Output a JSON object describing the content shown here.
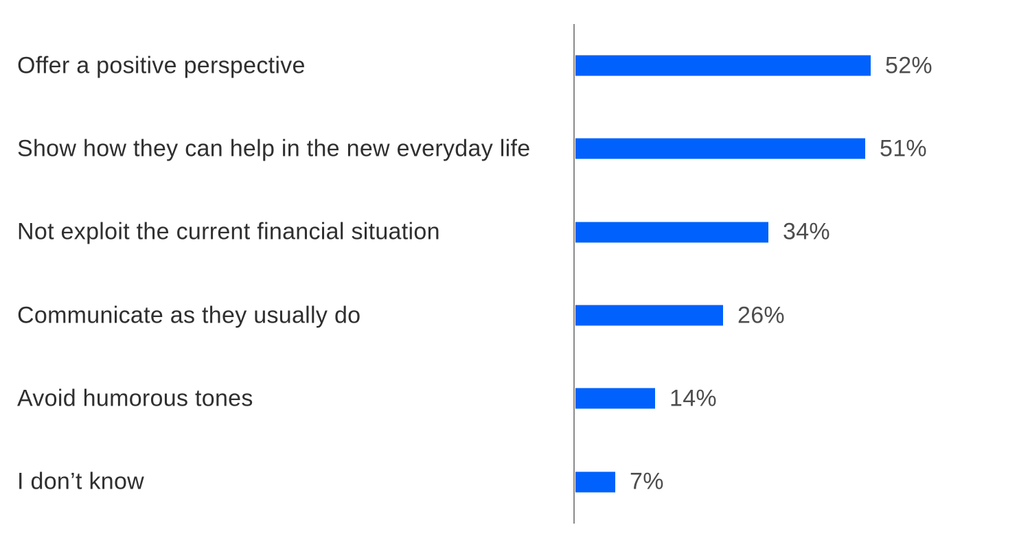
{
  "chart_data": {
    "type": "bar",
    "orientation": "horizontal",
    "title": "",
    "xlabel": "",
    "ylabel": "",
    "categories": [
      "Offer a positive perspective",
      "Show how they can help in the new everyday life",
      "Not exploit the current financial situation",
      "Communicate as they usually do",
      "Avoid humorous tones",
      "I don’t know"
    ],
    "values": [
      52,
      51,
      34,
      26,
      14,
      7
    ],
    "value_suffix": "%",
    "xlim": [
      0,
      60
    ],
    "grid": false,
    "legend": false,
    "data_labels": "outside-end",
    "style": {
      "bar_color": "#0061fc",
      "axis_line_color": "#8a8a8a",
      "category_label_color": "#2f2f2f",
      "value_label_color": "#4d4d4d",
      "background_color": "#ffffff"
    }
  }
}
